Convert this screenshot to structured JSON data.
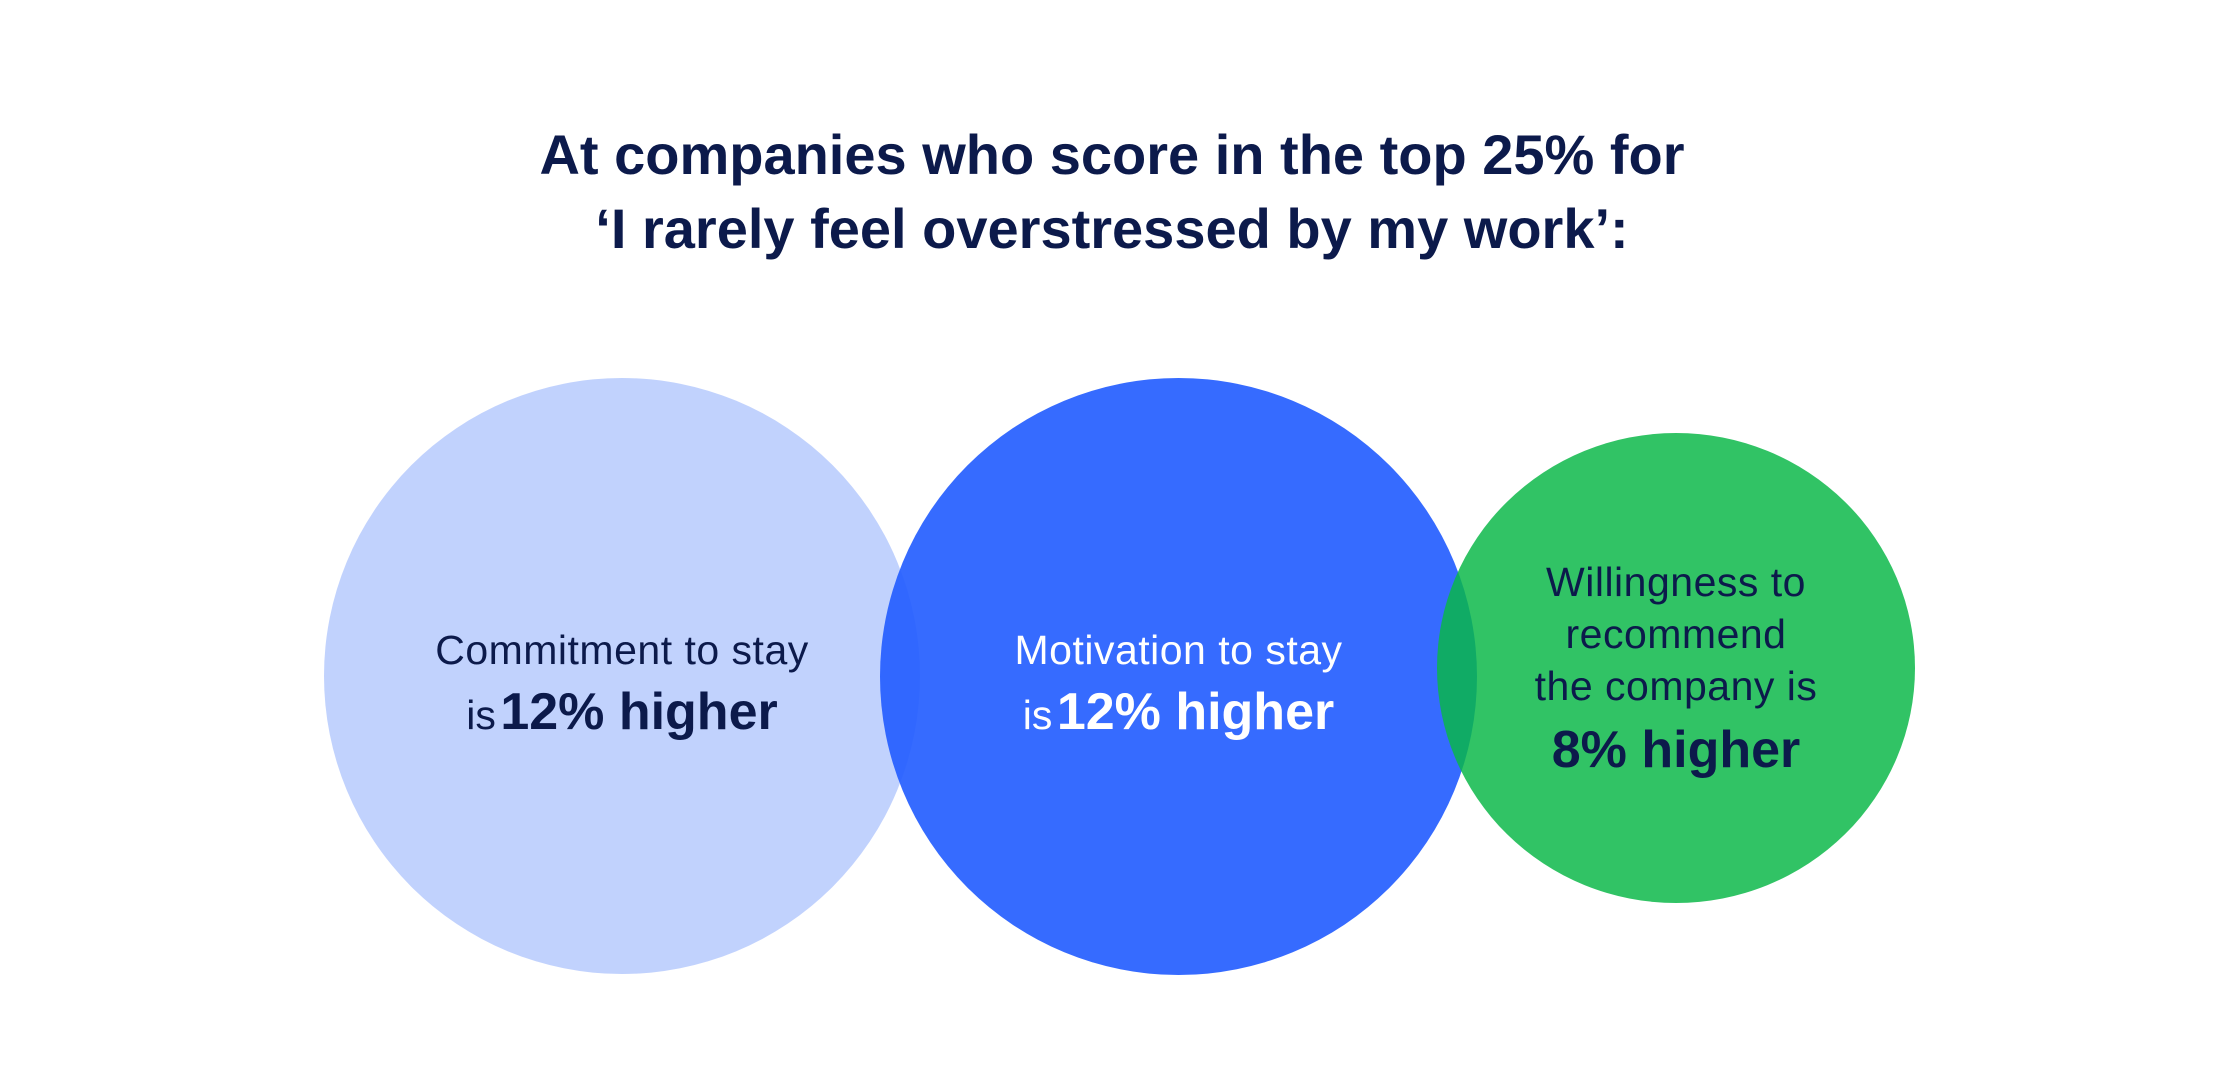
{
  "title": {
    "line1": "At companies who score in the top 25% for",
    "line2": "‘I rarely feel overstressed by my work’:"
  },
  "circles": [
    {
      "line1": "Commitment to stay",
      "prefix": "is",
      "value": "12% higher",
      "color": "#c2d3fd"
    },
    {
      "line1": "Motivation to stay",
      "prefix": "is",
      "value": "12% higher",
      "color": "#346afd"
    },
    {
      "line1": "Willingness to",
      "line2": "recommend",
      "line3": "the company is",
      "value": "8% higher",
      "color": "#32c45f"
    }
  ]
}
